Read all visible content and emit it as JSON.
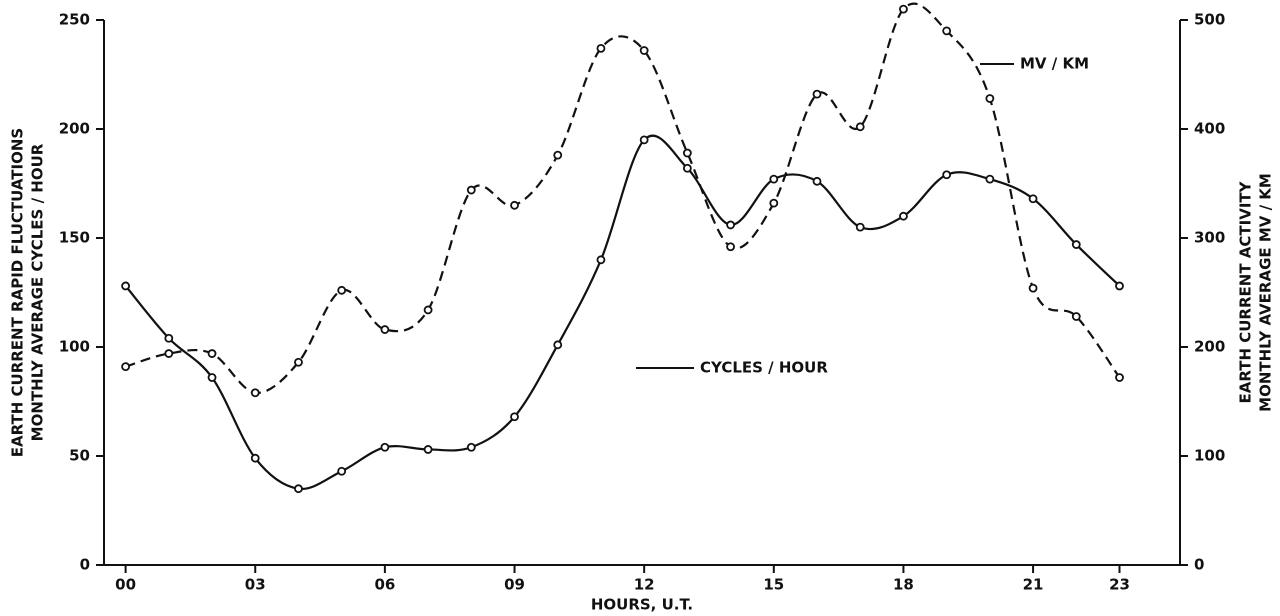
{
  "chart_data": {
    "type": "line",
    "xlabel": "HOURS, U.T.",
    "ylabel": [
      "EARTH CURRENT RAPID FLUCTUATIONS",
      "MONTHLY AVERAGE CYCLES / HOUR"
    ],
    "y2label": [
      "EARTH CURRENT ACTIVITY",
      "MONTHLY AVERAGE MV / KM"
    ],
    "x": [
      0,
      1,
      2,
      3,
      4,
      5,
      6,
      7,
      8,
      9,
      10,
      11,
      12,
      13,
      14,
      15,
      16,
      17,
      18,
      19,
      20,
      21,
      22,
      23
    ],
    "xlim": [
      -0.5,
      24.4
    ],
    "xticks": [
      {
        "value": 0,
        "label": "00"
      },
      {
        "value": 3,
        "label": "03"
      },
      {
        "value": 6,
        "label": "06"
      },
      {
        "value": 9,
        "label": "09"
      },
      12,
      15,
      18,
      21,
      23
    ],
    "ylim": [
      0,
      250
    ],
    "yticks": [
      0,
      50,
      100,
      150,
      200,
      250
    ],
    "y2lim": [
      0,
      500
    ],
    "y2ticks": [
      0,
      100,
      200,
      300,
      400,
      500
    ],
    "series": [
      {
        "name": "CYCLES / HOUR",
        "color": "#111111",
        "dash": false,
        "values": [
          128,
          104,
          86,
          49,
          35,
          43,
          54,
          53,
          54,
          68,
          101,
          140,
          195,
          182,
          156,
          177,
          176,
          155,
          160,
          179,
          177,
          168,
          147,
          128
        ]
      },
      {
        "name": "MV / KM",
        "color": "#111111",
        "dash": true,
        "axis": "y2",
        "values": [
          182,
          194,
          194,
          158,
          186,
          252,
          216,
          234,
          344,
          330,
          376,
          474,
          472,
          378,
          292,
          332,
          432,
          402,
          510,
          490,
          428,
          254,
          228,
          172
        ]
      }
    ]
  }
}
